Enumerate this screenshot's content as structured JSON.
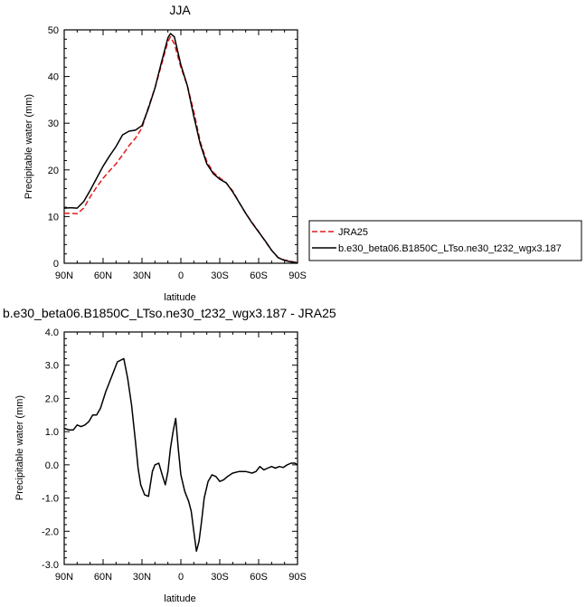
{
  "chart_data": [
    {
      "type": "line",
      "title": "JJA",
      "xlabel": "latitude",
      "ylabel": "Precipitable water (mm)",
      "xlim": [
        90,
        -90
      ],
      "ylim": [
        0,
        50
      ],
      "x_ticks": [
        90,
        60,
        30,
        0,
        -30,
        -60,
        -90
      ],
      "x_tick_labels": [
        "90N",
        "60N",
        "30N",
        "0",
        "30S",
        "60S",
        "90S"
      ],
      "y_ticks": [
        0,
        10,
        20,
        30,
        40,
        50
      ],
      "y_tick_labels": [
        "0",
        "10",
        "20",
        "30",
        "40",
        "50"
      ],
      "grid": false,
      "legend_position": "right",
      "series": [
        {
          "name": "JRA25",
          "color": "#e41a1c",
          "dash": "dashed",
          "x": [
            90,
            85,
            80,
            75,
            70,
            65,
            60,
            55,
            50,
            45,
            40,
            35,
            30,
            25,
            20,
            15,
            10,
            8,
            5,
            0,
            -5,
            -10,
            -15,
            -20,
            -25,
            -30,
            -35,
            -40,
            -45,
            -50,
            -55,
            -60,
            -65,
            -70,
            -75,
            -80,
            -85,
            -90
          ],
          "y": [
            10.7,
            10.7,
            10.6,
            11.8,
            14.2,
            16.3,
            18.2,
            19.8,
            21.3,
            23.2,
            25.2,
            26.8,
            29,
            33.5,
            37.5,
            42.5,
            47.5,
            48.5,
            47,
            42,
            38,
            32.5,
            26,
            21.8,
            19.5,
            18.3,
            17.2,
            15.5,
            13,
            10.7,
            8.7,
            6.8,
            4.7,
            2.8,
            1.2,
            0.7,
            0.4,
            0.1
          ]
        },
        {
          "name": "b.e30_beta06.B1850C_LTso.ne30_t232_wgx3.187",
          "color": "#000000",
          "dash": "solid",
          "x": [
            90,
            85,
            80,
            75,
            70,
            65,
            60,
            55,
            50,
            45,
            40,
            35,
            30,
            25,
            20,
            15,
            10,
            8,
            5,
            0,
            -5,
            -10,
            -15,
            -20,
            -25,
            -30,
            -35,
            -40,
            -45,
            -50,
            -55,
            -60,
            -65,
            -70,
            -75,
            -80,
            -85,
            -90
          ],
          "y": [
            11.8,
            11.9,
            11.8,
            13.2,
            15.6,
            18.2,
            20.8,
            23,
            25,
            27.5,
            28.3,
            28.5,
            29.5,
            33.2,
            37.5,
            43,
            48.3,
            49.2,
            48.5,
            42.5,
            38,
            31.5,
            25.5,
            21.3,
            19.2,
            18,
            17.2,
            15.3,
            13,
            10.7,
            8.6,
            6.7,
            4.8,
            2.8,
            1.2,
            0.6,
            0.3,
            0.1
          ]
        }
      ]
    },
    {
      "type": "line",
      "title": "b.e30_beta06.B1850C_LTso.ne30_t232_wgx3.187 - JRA25",
      "xlabel": "latitude",
      "ylabel": "Precipitable water (mm)",
      "xlim": [
        90,
        -90
      ],
      "ylim": [
        -3,
        4
      ],
      "x_ticks": [
        90,
        60,
        30,
        0,
        -30,
        -60,
        -90
      ],
      "x_tick_labels": [
        "90N",
        "60N",
        "30N",
        "0",
        "30S",
        "60S",
        "90S"
      ],
      "y_ticks": [
        -3,
        -2,
        -1,
        0,
        1,
        2,
        3,
        4
      ],
      "y_tick_labels": [
        "-3.0",
        "-2.0",
        "-1.0",
        "0.0",
        "1.0",
        "2.0",
        "3.0",
        "4.0"
      ],
      "grid": false,
      "series": [
        {
          "color": "#000000",
          "dash": "solid",
          "x": [
            90,
            86,
            83,
            80,
            77,
            74,
            71,
            68,
            65,
            62,
            58,
            55,
            52,
            49,
            44,
            41,
            38,
            35,
            33,
            31,
            28,
            25,
            22,
            20,
            17,
            14,
            12,
            10,
            8,
            6,
            4,
            2,
            0,
            -3,
            -6,
            -8,
            -10,
            -12,
            -14,
            -16,
            -18,
            -21,
            -24,
            -27,
            -30,
            -33,
            -36,
            -40,
            -45,
            -50,
            -55,
            -58,
            -61,
            -64,
            -67,
            -70,
            -73,
            -76,
            -79,
            -82,
            -85,
            -88,
            -90
          ],
          "y": [
            1.1,
            1.05,
            1.05,
            1.2,
            1.15,
            1.2,
            1.3,
            1.5,
            1.5,
            1.7,
            2.2,
            2.5,
            2.8,
            3.1,
            3.2,
            2.6,
            1.8,
            0.7,
            -0.1,
            -0.6,
            -0.9,
            -0.95,
            -0.2,
            0,
            0.05,
            -0.35,
            -0.6,
            -0.2,
            0.5,
            1,
            1.4,
            0.5,
            -0.3,
            -0.8,
            -1.1,
            -1.4,
            -2,
            -2.6,
            -2.3,
            -1.7,
            -1,
            -0.5,
            -0.3,
            -0.35,
            -0.5,
            -0.45,
            -0.35,
            -0.25,
            -0.2,
            -0.2,
            -0.25,
            -0.2,
            -0.05,
            -0.15,
            -0.1,
            -0.05,
            -0.1,
            -0.05,
            -0.08,
            0,
            0.05,
            0.05,
            0
          ]
        }
      ]
    }
  ]
}
